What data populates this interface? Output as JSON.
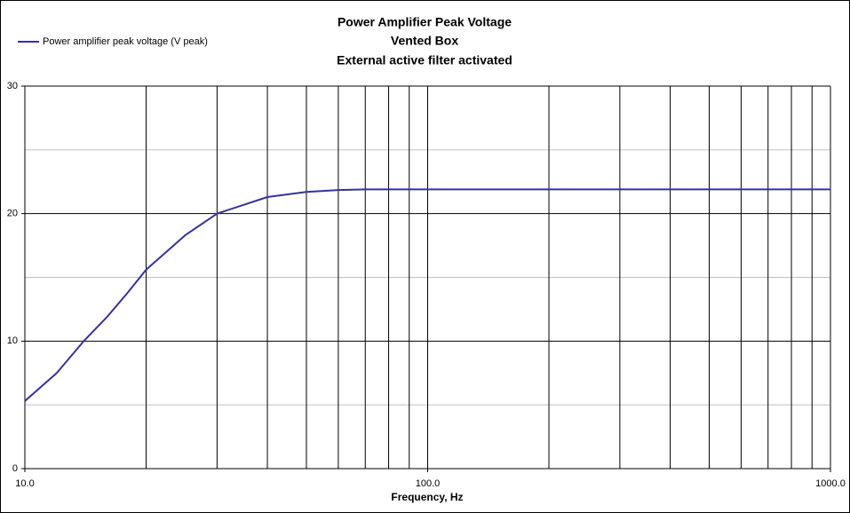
{
  "chart_data": {
    "type": "line",
    "title": "Power Amplifier Peak Voltage",
    "subtitle": [
      "Vented Box",
      "External active filter activated"
    ],
    "x_label": "Frequency, Hz",
    "x": [
      10,
      12,
      14,
      16,
      18,
      20,
      25,
      30,
      40,
      50,
      60,
      70,
      100,
      200,
      500,
      1000
    ],
    "series": [
      {
        "name": "Power amplifier peak voltage (V peak)",
        "color": "#333399",
        "values": [
          5.3,
          7.5,
          10,
          11.9,
          13.8,
          15.6,
          18.3,
          20.0,
          21.3,
          21.7,
          21.85,
          21.9,
          21.9,
          21.9,
          21.9,
          21.9
        ]
      }
    ],
    "x_log": true,
    "xlim": [
      10,
      1000
    ],
    "xticks": [
      {
        "value": 10,
        "label": "10.0"
      },
      {
        "value": 100,
        "label": "100.0"
      },
      {
        "value": 1000,
        "label": "1000.0"
      }
    ],
    "x_minor_grid": [
      20,
      30,
      40,
      50,
      60,
      70,
      80,
      90,
      200,
      300,
      400,
      500,
      600,
      700,
      800,
      900
    ],
    "ylim": [
      0,
      30
    ],
    "yticks": [
      0,
      10,
      20,
      30
    ],
    "y_minor_grid": [
      5,
      15,
      25
    ],
    "grid": true,
    "legend": "top-left"
  }
}
